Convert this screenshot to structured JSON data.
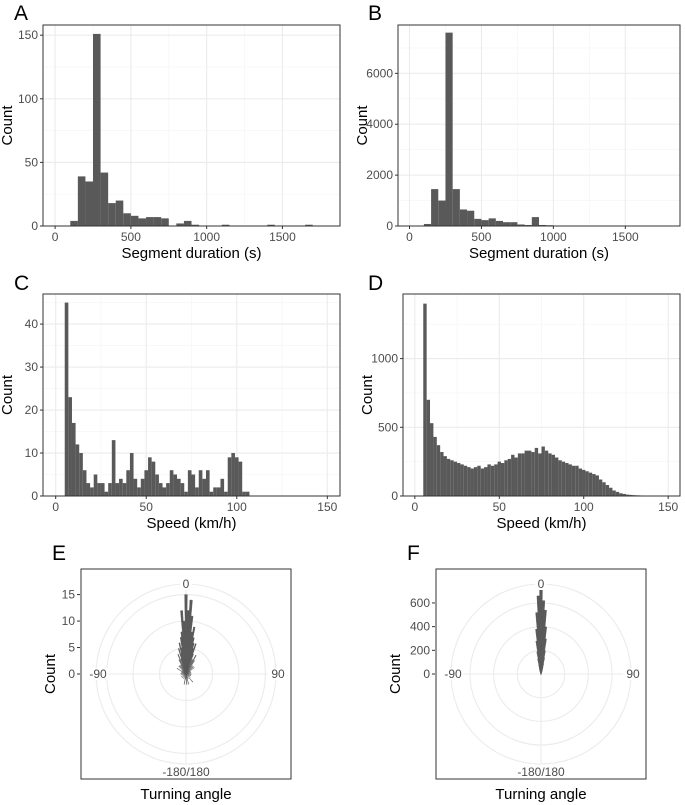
{
  "chart_data": [
    {
      "panel": "A",
      "type": "bar",
      "xlabel": "Segment duration (s)",
      "ylabel": "Count",
      "xlim": [
        -80,
        1880
      ],
      "ylim": [
        0,
        158
      ],
      "x_ticks": [
        0,
        500,
        1000,
        1500
      ],
      "y_ticks": [
        0,
        50,
        100,
        150
      ],
      "bins": [
        [
          100,
          150,
          4
        ],
        [
          150,
          200,
          39
        ],
        [
          200,
          250,
          35
        ],
        [
          250,
          300,
          151
        ],
        [
          300,
          350,
          42
        ],
        [
          350,
          400,
          18
        ],
        [
          400,
          450,
          20
        ],
        [
          450,
          500,
          10
        ],
        [
          500,
          550,
          8
        ],
        [
          550,
          600,
          6
        ],
        [
          600,
          650,
          7
        ],
        [
          650,
          700,
          7
        ],
        [
          700,
          750,
          6
        ],
        [
          750,
          800,
          0
        ],
        [
          800,
          850,
          2
        ],
        [
          850,
          900,
          4
        ],
        [
          900,
          950,
          1
        ],
        [
          1100,
          1150,
          1
        ],
        [
          1400,
          1450,
          1
        ],
        [
          1650,
          1700,
          1
        ]
      ]
    },
    {
      "panel": "B",
      "type": "bar",
      "xlabel": "Segment duration (s)",
      "ylabel": "Count",
      "xlim": [
        -80,
        1880
      ],
      "ylim": [
        0,
        7900
      ],
      "x_ticks": [
        0,
        500,
        1000,
        1500
      ],
      "y_ticks": [
        0,
        2000,
        4000,
        6000
      ],
      "bins": [
        [
          100,
          150,
          80
        ],
        [
          150,
          200,
          1450
        ],
        [
          200,
          250,
          1000
        ],
        [
          250,
          300,
          7600
        ],
        [
          300,
          350,
          1450
        ],
        [
          350,
          400,
          650
        ],
        [
          400,
          450,
          600
        ],
        [
          450,
          500,
          280
        ],
        [
          500,
          550,
          230
        ],
        [
          550,
          600,
          300
        ],
        [
          600,
          650,
          200
        ],
        [
          650,
          700,
          150
        ],
        [
          700,
          750,
          150
        ],
        [
          750,
          800,
          60
        ],
        [
          800,
          850,
          40
        ],
        [
          850,
          900,
          350
        ],
        [
          900,
          950,
          40
        ],
        [
          950,
          1000,
          30
        ],
        [
          1000,
          1050,
          20
        ],
        [
          1050,
          1100,
          15
        ],
        [
          1100,
          1150,
          15
        ],
        [
          1150,
          1200,
          10
        ],
        [
          1200,
          1250,
          8
        ],
        [
          1250,
          1300,
          6
        ],
        [
          1300,
          1350,
          5
        ],
        [
          1350,
          1400,
          4
        ],
        [
          1400,
          1450,
          3
        ],
        [
          1450,
          1500,
          3
        ],
        [
          1500,
          1550,
          2
        ],
        [
          1550,
          1600,
          2
        ],
        [
          1600,
          1650,
          1
        ],
        [
          1650,
          1700,
          1
        ],
        [
          1700,
          1750,
          1
        ]
      ]
    },
    {
      "panel": "C",
      "type": "bar",
      "xlabel": "Speed (km/h)",
      "ylabel": "Count",
      "xlim": [
        -7,
        157
      ],
      "ylim": [
        0,
        47
      ],
      "x_ticks": [
        0,
        50,
        100,
        150
      ],
      "y_ticks": [
        0,
        10,
        20,
        30,
        40
      ],
      "bin_start": 5,
      "bin_width": 2,
      "values": [
        45,
        23,
        17,
        12,
        10,
        6,
        3,
        2,
        5,
        3,
        3,
        1,
        3,
        13,
        3,
        4,
        3,
        6,
        10,
        4,
        2,
        4,
        6,
        9,
        8,
        5,
        3,
        2,
        3,
        6,
        5,
        4,
        3,
        1,
        6,
        5,
        2,
        6,
        4,
        6,
        1,
        2,
        2,
        4,
        1,
        9,
        10,
        9,
        8,
        1,
        1
      ]
    },
    {
      "panel": "D",
      "type": "bar",
      "xlabel": "Speed (km/h)",
      "ylabel": "Count",
      "xlim": [
        -7,
        157
      ],
      "ylim": [
        0,
        1470
      ],
      "x_ticks": [
        0,
        50,
        100,
        150
      ],
      "y_ticks": [
        0,
        500,
        1000
      ],
      "bin_start": 5,
      "bin_width": 2,
      "values": [
        1400,
        700,
        530,
        430,
        370,
        320,
        290,
        270,
        260,
        250,
        240,
        230,
        220,
        210,
        200,
        210,
        220,
        200,
        210,
        230,
        220,
        230,
        250,
        240,
        260,
        270,
        300,
        280,
        310,
        310,
        330,
        330,
        320,
        350,
        310,
        360,
        330,
        310,
        300,
        280,
        260,
        250,
        240,
        230,
        220,
        220,
        200,
        190,
        180,
        170,
        160,
        150,
        120,
        100,
        80,
        60,
        40,
        30,
        20,
        15,
        10,
        8,
        6,
        5,
        4,
        3,
        2,
        2,
        1,
        1
      ]
    },
    {
      "panel": "E",
      "type": "polar-bar",
      "xlabel": "Turning angle",
      "ylabel": "Count",
      "angle_ticks": [
        "0",
        "90",
        "-180/180",
        "-90"
      ],
      "r_ticks": [
        0,
        5,
        10,
        15
      ],
      "rmax": 17,
      "bin_width_deg": 2,
      "bins": [
        [
          0,
          15
        ],
        [
          2,
          12
        ],
        [
          4,
          14
        ],
        [
          6,
          11
        ],
        [
          8,
          8
        ],
        [
          10,
          9
        ],
        [
          12,
          7
        ],
        [
          14,
          6
        ],
        [
          16,
          5
        ],
        [
          18,
          6
        ],
        [
          20,
          4
        ],
        [
          24,
          3
        ],
        [
          28,
          4
        ],
        [
          32,
          3
        ],
        [
          38,
          2
        ],
        [
          44,
          2
        ],
        [
          52,
          2
        ],
        [
          60,
          1
        ],
        [
          70,
          1
        ],
        [
          80,
          1
        ],
        [
          96,
          1
        ],
        [
          110,
          1
        ],
        [
          126,
          1
        ],
        [
          140,
          2
        ],
        [
          156,
          1
        ],
        [
          166,
          2
        ],
        [
          176,
          2
        ],
        [
          180,
          1
        ],
        [
          -2,
          10
        ],
        [
          -4,
          12
        ],
        [
          -6,
          8
        ],
        [
          -8,
          7
        ],
        [
          -10,
          5
        ],
        [
          -12,
          6
        ],
        [
          -14,
          4
        ],
        [
          -16,
          5
        ],
        [
          -18,
          3
        ],
        [
          -22,
          4
        ],
        [
          -26,
          3
        ],
        [
          -30,
          2
        ],
        [
          -36,
          2
        ],
        [
          -42,
          2
        ],
        [
          -50,
          1
        ],
        [
          -58,
          2
        ],
        [
          -68,
          1
        ],
        [
          -82,
          1
        ],
        [
          -100,
          1
        ],
        [
          -120,
          1
        ],
        [
          -138,
          1
        ],
        [
          -154,
          1
        ],
        [
          -170,
          2
        ],
        [
          -178,
          1
        ]
      ]
    },
    {
      "panel": "F",
      "type": "polar-bar",
      "xlabel": "Turning angle",
      "ylabel": "Count",
      "angle_ticks": [
        "0",
        "90",
        "-180/180",
        "-90"
      ],
      "r_ticks": [
        0,
        200,
        400,
        600
      ],
      "rmax": 760,
      "bin_width_deg": 2,
      "bins": [
        [
          0,
          720
        ],
        [
          2,
          620
        ],
        [
          4,
          540
        ],
        [
          6,
          400
        ],
        [
          8,
          300
        ],
        [
          10,
          200
        ],
        [
          12,
          140
        ],
        [
          14,
          90
        ],
        [
          16,
          60
        ],
        [
          18,
          40
        ],
        [
          20,
          30
        ],
        [
          24,
          20
        ],
        [
          30,
          12
        ],
        [
          40,
          8
        ],
        [
          60,
          5
        ],
        [
          90,
          4
        ],
        [
          120,
          3
        ],
        [
          150,
          4
        ],
        [
          176,
          6
        ],
        [
          180,
          5
        ],
        [
          -2,
          660
        ],
        [
          -4,
          520
        ],
        [
          -6,
          380
        ],
        [
          -8,
          280
        ],
        [
          -10,
          190
        ],
        [
          -12,
          130
        ],
        [
          -14,
          80
        ],
        [
          -16,
          55
        ],
        [
          -18,
          40
        ],
        [
          -22,
          25
        ],
        [
          -28,
          15
        ],
        [
          -36,
          10
        ],
        [
          -50,
          6
        ],
        [
          -80,
          4
        ],
        [
          -110,
          3
        ],
        [
          -140,
          4
        ],
        [
          -170,
          5
        ]
      ]
    }
  ]
}
